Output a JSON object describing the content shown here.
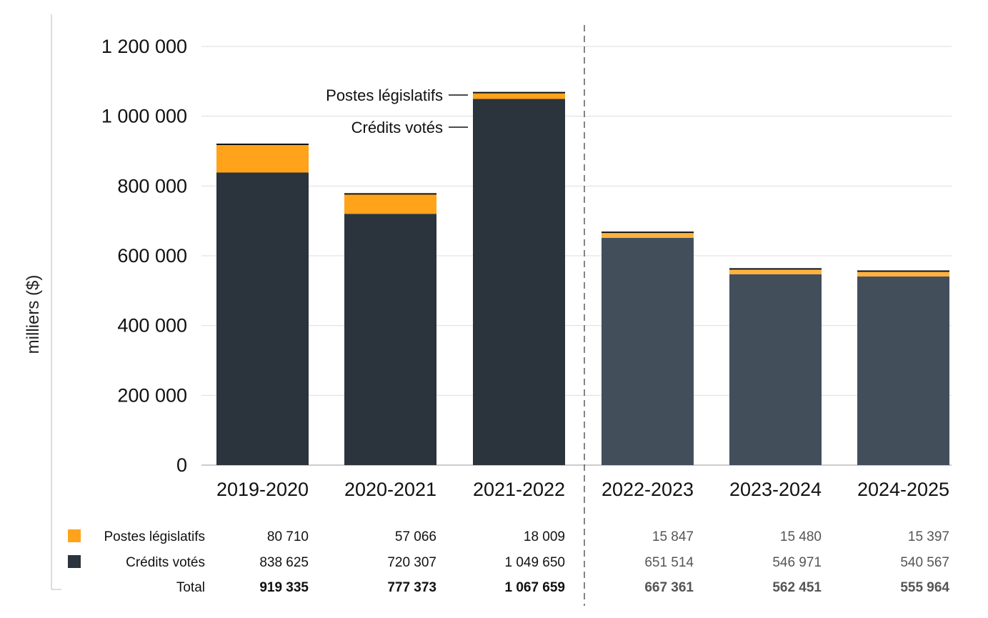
{
  "chart_data": {
    "type": "bar",
    "stacked": true,
    "ylabel": "milliers ($)",
    "ylim": [
      0,
      1200000
    ],
    "yticks": [
      0,
      200000,
      400000,
      600000,
      800000,
      1000000,
      1200000
    ],
    "ytick_labels": [
      "0",
      "200 000",
      "400 000",
      "600 000",
      "800 000",
      "1 000 000",
      "1 200 000"
    ],
    "grid": true,
    "categories": [
      "2019-2020",
      "2020-2021",
      "2021-2022",
      "2022-2023",
      "2023-2024",
      "2024-2025"
    ],
    "projected_from_index": 3,
    "series": [
      {
        "name": "Crédits votés",
        "values": [
          838625,
          720307,
          1049650,
          651514,
          546971,
          540567
        ],
        "labels": [
          "838 625",
          "720 307",
          "1 049 650",
          "651 514",
          "546 971",
          "540 567"
        ],
        "color": "#2b333d",
        "projected_color": "#434e5b"
      },
      {
        "name": "Postes législatifs",
        "values": [
          80710,
          57066,
          18009,
          15847,
          15480,
          15397
        ],
        "labels": [
          "80 710",
          "57 066",
          "18 009",
          "15 847",
          "15 480",
          "15 397"
        ],
        "color": "#ffa31a",
        "projected_color": "#ffb23f"
      }
    ],
    "totals": {
      "name": "Total",
      "values": [
        919335,
        777373,
        1067659,
        667361,
        562451,
        555964
      ],
      "labels": [
        "919 335",
        "777 373",
        "1 067 659",
        "667 361",
        "562 451",
        "555 964"
      ]
    },
    "annotations": [
      "Postes législatifs",
      "Crédits votés"
    ]
  }
}
